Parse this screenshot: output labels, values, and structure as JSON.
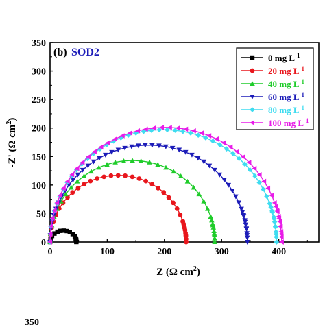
{
  "chart_data": {
    "type": "scatter",
    "panel_label": "(b)",
    "title": "SOD2",
    "xlabel_base": "Z (Ω cm",
    "xlabel_sup": "2",
    "xlabel_end": ")",
    "ylabel_base": "-Z' (Ω cm",
    "ylabel_sup": "2",
    "ylabel_end": ")",
    "xlim": [
      0,
      470
    ],
    "ylim": [
      0,
      350
    ],
    "x_ticks": [
      0,
      100,
      200,
      300,
      400
    ],
    "y_ticks": [
      0,
      50,
      100,
      150,
      200,
      250,
      300,
      350
    ],
    "legend_position": "top-right",
    "series": [
      {
        "name": "0   mg L",
        "sup": "-1",
        "color": "#000000",
        "marker": "square",
        "x_start": 0,
        "x_end": 46,
        "peak": 20
      },
      {
        "name": "20 mg L",
        "sup": "-1",
        "color": "#e8161c",
        "marker": "circle",
        "x_start": 0,
        "x_end": 238,
        "peak": 117
      },
      {
        "name": "40 mg L",
        "sup": "-1",
        "color": "#1fcc2a",
        "marker": "triangle-up",
        "x_start": 0,
        "x_end": 288,
        "peak": 143
      },
      {
        "name": "60 mg L",
        "sup": "-1",
        "color": "#1c1cb8",
        "marker": "triangle-down",
        "x_start": 0,
        "x_end": 345,
        "peak": 170
      },
      {
        "name": "80 mg L",
        "sup": "-1",
        "color": "#3fdcf0",
        "marker": "diamond",
        "x_start": 0,
        "x_end": 396,
        "peak": 197
      },
      {
        "name": "100 mg L",
        "sup": "-1",
        "color": "#e81ce8",
        "marker": "triangle-left",
        "x_start": 0,
        "x_end": 405,
        "peak": 201
      }
    ],
    "next_panel_tick_fragment": "350"
  }
}
